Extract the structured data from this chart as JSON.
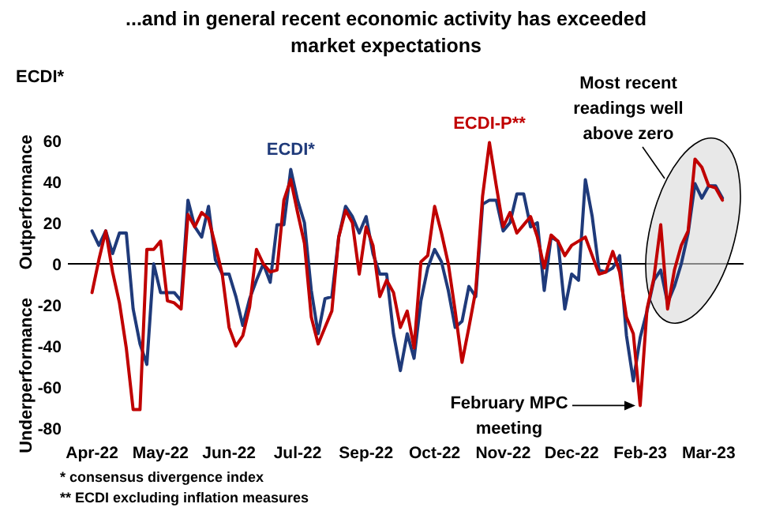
{
  "chart_data": {
    "type": "line",
    "title": "...and in general recent economic activity has exceeded market expectations",
    "ylabel": "ECDI*",
    "categories": [
      "Apr-22",
      null,
      null,
      null,
      null,
      null,
      null,
      null,
      null,
      null,
      "May-22",
      null,
      null,
      null,
      null,
      null,
      null,
      null,
      null,
      null,
      "Jun-22",
      null,
      null,
      null,
      null,
      null,
      null,
      null,
      null,
      null,
      "Jul-22",
      null,
      null,
      null,
      null,
      null,
      null,
      null,
      null,
      null,
      "Sep-22",
      null,
      null,
      null,
      null,
      null,
      null,
      null,
      null,
      null,
      "Oct-22",
      null,
      null,
      null,
      null,
      null,
      null,
      null,
      null,
      null,
      "Nov-22",
      null,
      null,
      null,
      null,
      null,
      null,
      null,
      null,
      null,
      "Dec-22",
      null,
      null,
      null,
      null,
      null,
      null,
      null,
      null,
      null,
      "Feb-23",
      null,
      null,
      null,
      null,
      null,
      null,
      null,
      null,
      null,
      "Mar-23",
      null,
      null
    ],
    "ylim": [
      -80,
      60
    ],
    "yticks": [
      -80,
      -60,
      -40,
      -20,
      0,
      20,
      40,
      60
    ],
    "marker": "none",
    "line_style": "solid",
    "ref_lines": [
      {
        "axis": "y",
        "value": 0,
        "color": "#000000"
      }
    ],
    "series": [
      {
        "name": "ECDI*",
        "color": "#1f3a7a",
        "values": [
          16,
          9,
          16,
          5,
          15,
          15,
          -22,
          -39,
          -49,
          0,
          -14,
          -14,
          -14,
          -18,
          31,
          18,
          13,
          28,
          2,
          -5,
          -5,
          -16,
          -30,
          -17,
          -8,
          0,
          -9,
          19,
          19,
          46,
          31,
          20,
          -13,
          -34,
          -17,
          -16,
          13,
          28,
          23,
          15,
          23,
          5,
          -5,
          -5,
          -34,
          -52,
          -34,
          -46,
          -18,
          -2,
          7,
          1,
          -13,
          -31,
          -28,
          -11,
          -16,
          29,
          31,
          31,
          16,
          20,
          34,
          34,
          18,
          20,
          -13,
          13,
          11,
          -22,
          -5,
          -8,
          41,
          23,
          -3,
          -4,
          -2,
          4,
          -35,
          -57,
          -36,
          -23,
          -8,
          -3,
          -19,
          -11,
          0,
          15,
          39,
          32,
          38,
          38,
          32
        ]
      },
      {
        "name": "ECDI-P**",
        "color": "#c00000",
        "values": [
          -14,
          2,
          16,
          -4,
          -19,
          -41,
          -71,
          -71,
          7,
          7,
          11,
          -18,
          -19,
          -22,
          24,
          18,
          25,
          22,
          9,
          -5,
          -31,
          -40,
          -35,
          -21,
          7,
          0,
          -4,
          -3,
          31,
          41,
          25,
          10,
          -26,
          -39,
          -31,
          -23,
          13,
          26,
          20,
          -5,
          18,
          9,
          -16,
          -8,
          -14,
          -31,
          -23,
          -41,
          1,
          4,
          28,
          15,
          0,
          -23,
          -48,
          -31,
          -13,
          33,
          59,
          38,
          18,
          25,
          15,
          19,
          23,
          13,
          -2,
          14,
          11,
          4,
          9,
          11,
          13,
          4,
          -5,
          -4,
          6,
          -4,
          -26,
          -34,
          -69,
          -22,
          -7,
          19,
          -22,
          -3,
          9,
          16,
          51,
          47,
          38,
          37,
          31
        ]
      }
    ],
    "annotations": [
      "Outperformance",
      "Underperformance",
      "Most recent readings well above zero",
      {
        "text": "February MPC meeting",
        "x": "Feb-23",
        "y": -69
      },
      "* consensus divergence index",
      "** ECDI excluding inflation measures"
    ]
  }
}
